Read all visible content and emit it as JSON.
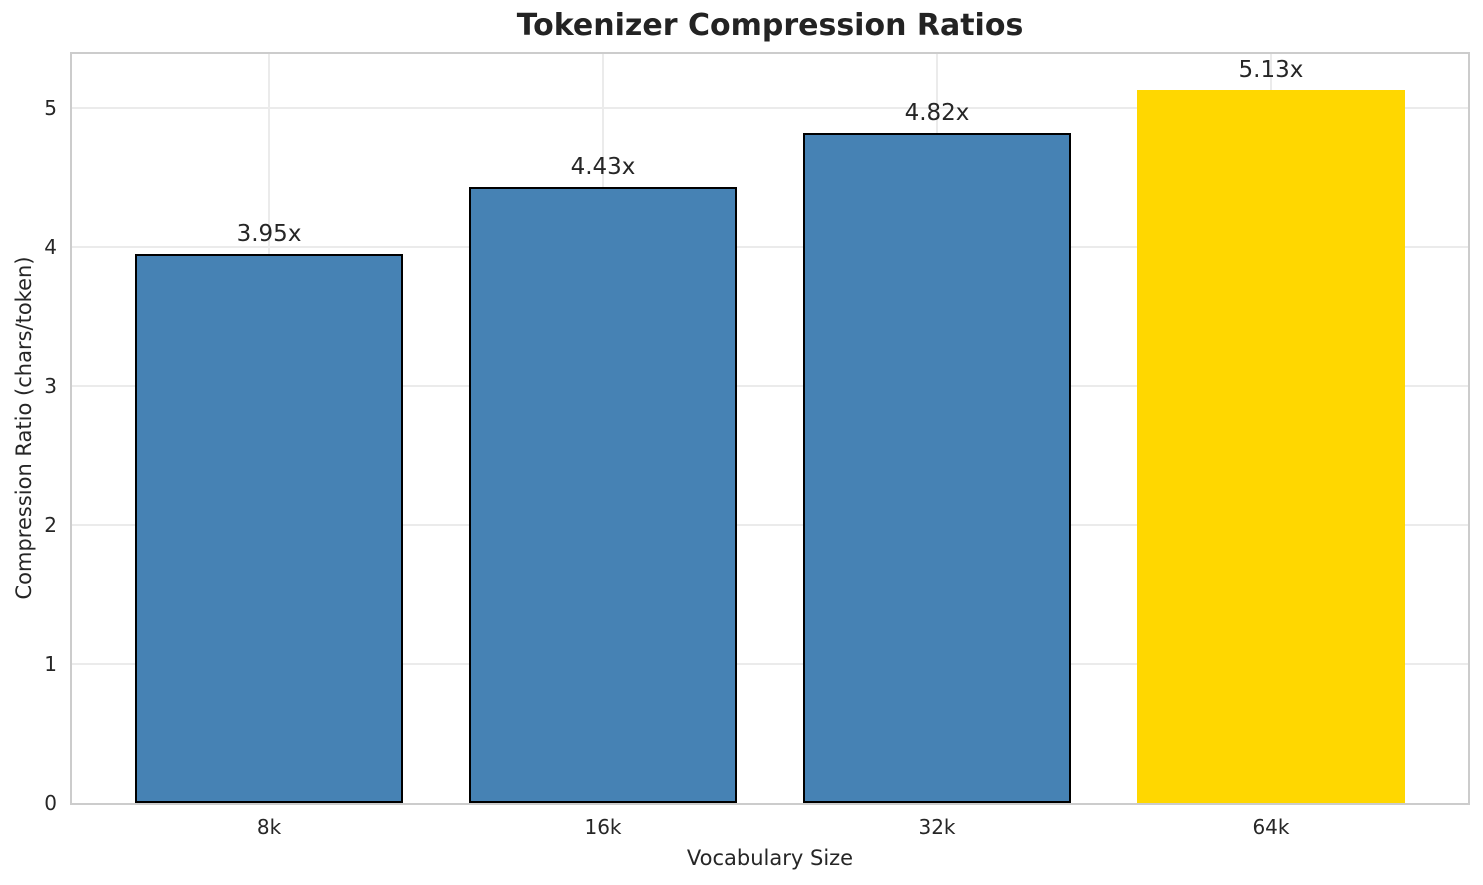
{
  "chart_data": {
    "type": "bar",
    "title": "Tokenizer Compression Ratios",
    "xlabel": "Vocabulary Size",
    "ylabel": "Compression Ratio (chars/token)",
    "categories": [
      "8k",
      "16k",
      "32k",
      "64k"
    ],
    "values": [
      3.95,
      4.43,
      4.82,
      5.13
    ],
    "bar_labels": [
      "3.95x",
      "4.43x",
      "4.82x",
      "5.13x"
    ],
    "bar_colors": [
      "#4682B4",
      "#4682B4",
      "#4682B4",
      "#FFD700"
    ],
    "bar_edge_colors": [
      "#000000",
      "#000000",
      "#000000",
      "none"
    ],
    "yticks": [
      0,
      1,
      2,
      3,
      4,
      5
    ],
    "ylim": [
      0,
      5.39
    ],
    "grid": true,
    "legend": "none",
    "colors": {
      "steel_blue": "#4682B4",
      "gold": "#FFD700",
      "text": "#262626",
      "grid_line": "#ebebeb",
      "spine": "#cccccc",
      "background": "#ffffff"
    }
  }
}
